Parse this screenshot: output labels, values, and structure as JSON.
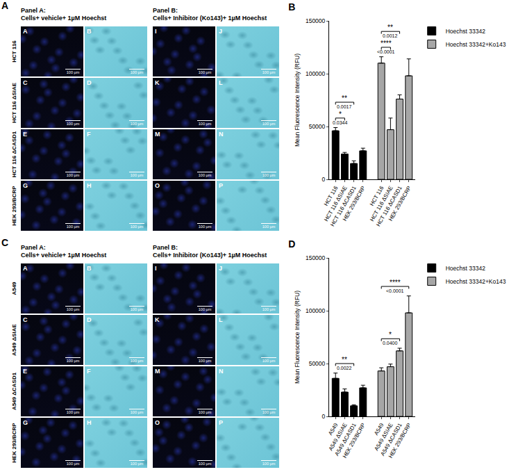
{
  "figures": [
    {
      "letter": "A",
      "rows": [
        "HCT 116",
        "HCT 116 ΔSIAE",
        "HCT 116 ΔCASD1",
        "HEK 293/BCRP"
      ],
      "scale_bar": "100 µm",
      "groups": [
        {
          "title": "Panel A:",
          "subtitle": "Cells+ vehicle+ 1µM Hoechst",
          "letters": [
            [
              "A",
              "B"
            ],
            [
              "C",
              "D"
            ],
            [
              "E",
              "F"
            ],
            [
              "G",
              "H"
            ]
          ]
        },
        {
          "title": "Panel B:",
          "subtitle": "Cells+ Inhibitor (Ko143)+ 1µM Hoechst",
          "letters": [
            [
              "I",
              "J"
            ],
            [
              "K",
              "L"
            ],
            [
              "M",
              "N"
            ],
            [
              "O",
              "P"
            ]
          ]
        }
      ]
    },
    {
      "letter": "C",
      "rows": [
        "A549",
        "A549 ΔSIAE",
        "A549 ΔCASD1",
        "HEK 293/BCRP"
      ],
      "scale_bar": "100 µm",
      "groups": [
        {
          "title": "Panel A:",
          "subtitle": "Cells+ vehicle+ 1µM Hoechst",
          "letters": [
            [
              "A",
              "B"
            ],
            [
              "C",
              "D"
            ],
            [
              "E",
              "F"
            ],
            [
              "G",
              "H"
            ]
          ]
        },
        {
          "title": "Panel B:",
          "subtitle": "Cells+ Inhibitor (Ko143)+ 1µM Hoechst",
          "letters": [
            [
              "I",
              "J"
            ],
            [
              "K",
              "L"
            ],
            [
              "M",
              "N"
            ],
            [
              "O",
              "P"
            ]
          ]
        }
      ]
    }
  ],
  "chart_data": [
    {
      "type": "bar",
      "title": "B",
      "categories": [
        "HCT 116",
        "HCT 116 ΔSIAE",
        "HCT 116 ΔCASD1",
        "HEK 293/BCRP"
      ],
      "series": [
        {
          "name": "Hoechst 33342",
          "color": "#000000",
          "values": [
            46000,
            24000,
            15000,
            27000
          ],
          "errors": [
            3000,
            1500,
            2500,
            2500
          ]
        },
        {
          "name": "Hoechst 33342+Ko143",
          "color": "#a6a6a6",
          "values": [
            110000,
            47000,
            76000,
            98000
          ],
          "errors": [
            6000,
            11000,
            4000,
            16000
          ]
        }
      ],
      "ylim": [
        0,
        150000
      ],
      "yticks": [
        0,
        50000,
        100000,
        150000
      ],
      "y_label": "Mean Fluorescence Intensity (RFU)",
      "legend": "right",
      "grid": false,
      "comparisons": [
        {
          "series": 0,
          "from": 0,
          "to": 1,
          "stars": "*",
          "p": "0.0344"
        },
        {
          "series": 0,
          "from": 0,
          "to": 2,
          "stars": "**",
          "p": "0.0017"
        },
        {
          "series": 1,
          "from": 0,
          "to": 1,
          "stars": "****",
          "p": "<0.0001"
        },
        {
          "series": 1,
          "from": 0,
          "to": 2,
          "stars": "**",
          "p": "0.0012"
        }
      ]
    },
    {
      "type": "bar",
      "title": "D",
      "categories": [
        "A549",
        "A549 ΔSIAE",
        "A549 ΔCASD1",
        "HEK 293/BCRP"
      ],
      "series": [
        {
          "name": "Hoechst 33342",
          "color": "#000000",
          "values": [
            36000,
            23000,
            10000,
            27000
          ],
          "errors": [
            5000,
            3000,
            1000,
            2500
          ]
        },
        {
          "name": "Hoechst 33342+Ko143",
          "color": "#a6a6a6",
          "values": [
            43000,
            47000,
            62000,
            98000
          ],
          "errors": [
            3000,
            2500,
            2500,
            16000
          ]
        }
      ],
      "ylim": [
        0,
        150000
      ],
      "yticks": [
        0,
        50000,
        100000,
        150000
      ],
      "y_label": "Mean Fluorescence Intensity (RFU)",
      "legend": "right",
      "grid": false,
      "comparisons": [
        {
          "series": 0,
          "from": 0,
          "to": 2,
          "stars": "**",
          "p": "0.0022"
        },
        {
          "series": 1,
          "from": 0,
          "to": 2,
          "stars": "*",
          "p": "0.0400"
        },
        {
          "series": 1,
          "from": 0,
          "to": 3,
          "stars": "****",
          "p": "<0.0001"
        }
      ]
    }
  ]
}
